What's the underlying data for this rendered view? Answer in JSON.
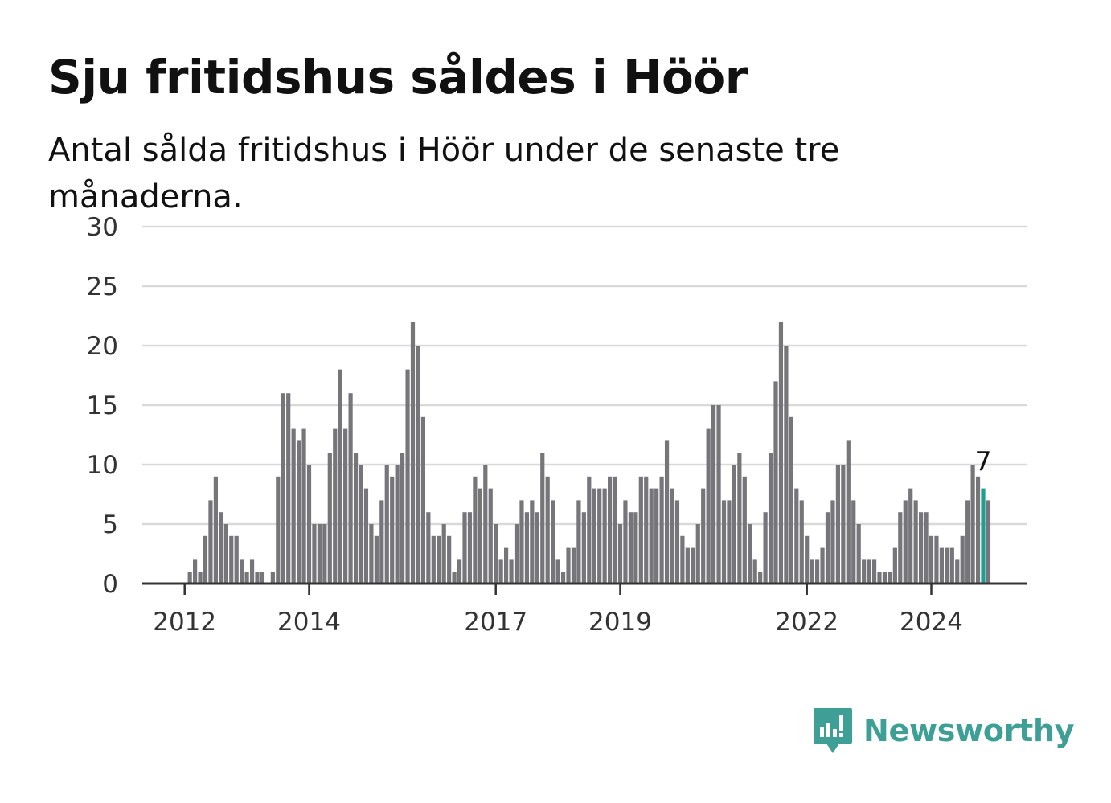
{
  "chart_data": {
    "type": "bar",
    "title": "Sju fritidshus såldes i Höör",
    "subtitle": "Antal sålda fritidshus i Höör under de senaste tre månaderna.",
    "ylim": [
      0,
      30
    ],
    "yticks": [
      0,
      5,
      10,
      15,
      20,
      25,
      30
    ],
    "grid": true,
    "xtick_labels": [
      {
        "label": "2012",
        "index": 8
      },
      {
        "label": "2014",
        "index": 32
      },
      {
        "label": "2017",
        "index": 68
      },
      {
        "label": "2019",
        "index": 92
      },
      {
        "label": "2022",
        "index": 128
      },
      {
        "label": "2024",
        "index": 152
      }
    ],
    "values": [
      0,
      0,
      0,
      0,
      0,
      0,
      0,
      0,
      0,
      1,
      2,
      1,
      4,
      7,
      9,
      6,
      5,
      4,
      4,
      2,
      1,
      2,
      1,
      1,
      0,
      1,
      9,
      16,
      16,
      13,
      12,
      13,
      10,
      5,
      5,
      5,
      11,
      13,
      18,
      13,
      16,
      11,
      10,
      8,
      5,
      4,
      7,
      10,
      9,
      10,
      11,
      18,
      22,
      20,
      14,
      6,
      4,
      4,
      5,
      4,
      1,
      2,
      6,
      6,
      9,
      8,
      10,
      8,
      5,
      2,
      3,
      2,
      5,
      7,
      6,
      7,
      6,
      11,
      9,
      7,
      2,
      1,
      3,
      3,
      7,
      6,
      9,
      8,
      8,
      8,
      9,
      9,
      5,
      7,
      6,
      6,
      9,
      9,
      8,
      8,
      9,
      12,
      8,
      7,
      4,
      3,
      3,
      5,
      8,
      13,
      15,
      15,
      7,
      7,
      10,
      11,
      9,
      5,
      2,
      1,
      6,
      11,
      17,
      22,
      20,
      14,
      8,
      7,
      4,
      2,
      2,
      3,
      6,
      7,
      10,
      10,
      12,
      7,
      5,
      2,
      2,
      2,
      1,
      1,
      1,
      3,
      6,
      7,
      8,
      7,
      6,
      6,
      4,
      4,
      3,
      3,
      3,
      2,
      4,
      7,
      10,
      9,
      8,
      7
    ],
    "highlight_index": 162,
    "highlight_label": "7",
    "colors": {
      "bar": "#76767a",
      "highlight": "#1e9e93",
      "grid": "#d9d9d9",
      "axis": "#333333"
    }
  },
  "brand": {
    "name": "Newsworthy",
    "icon": "newsworthy-logo-icon",
    "color": "#3d9f95"
  }
}
